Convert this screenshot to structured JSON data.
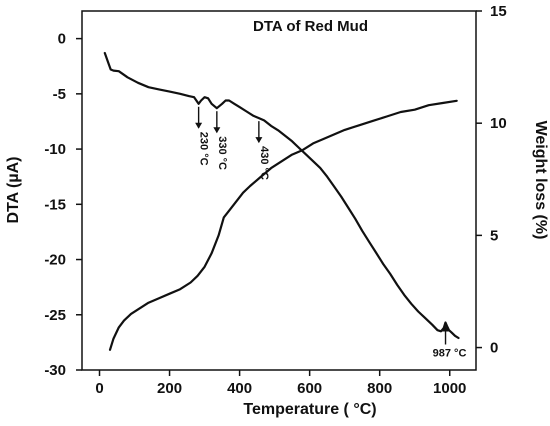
{
  "chart_data": {
    "type": "line",
    "title": "DTA of Red Mud",
    "xlabel": "Temperature ( °C)",
    "ylabel_left": "DTA (µA)",
    "ylabel_right": "Weight loss (%)",
    "xlim": [
      -50,
      1075
    ],
    "ylim_left": [
      -30,
      2.5
    ],
    "ylim_right": [
      -1,
      15
    ],
    "x_ticks": [
      "0",
      "200",
      "400",
      "600",
      "800",
      "1000"
    ],
    "y_left_ticks": [
      "0",
      "-5",
      "-10",
      "-15",
      "-20",
      "-25",
      "-30"
    ],
    "y_right_ticks": [
      "15",
      "10",
      "5",
      "0"
    ],
    "grid": false,
    "series": [
      {
        "axis": "left",
        "x": [
          15,
          25,
          32,
          40,
          55,
          80,
          110,
          140,
          170,
          200,
          230,
          255,
          270,
          283,
          290,
          300,
          310,
          320,
          335,
          350,
          360,
          370,
          385,
          400,
          420,
          440,
          455,
          470,
          490,
          510,
          530,
          550,
          570,
          590,
          610,
          630,
          650,
          670,
          690,
          710,
          730,
          750,
          770,
          790,
          810,
          830,
          850,
          870,
          890,
          910,
          930,
          950,
          965,
          975,
          983,
          988,
          992,
          998,
          1005,
          1015,
          1025
        ],
        "values": [
          -1.3,
          -2.2,
          -2.8,
          -2.9,
          -2.95,
          -3.5,
          -4.0,
          -4.4,
          -4.6,
          -4.8,
          -5.0,
          -5.2,
          -5.3,
          -5.9,
          -5.6,
          -5.3,
          -5.4,
          -5.9,
          -6.3,
          -5.9,
          -5.6,
          -5.6,
          -5.9,
          -6.2,
          -6.6,
          -7.0,
          -7.2,
          -7.4,
          -7.9,
          -8.3,
          -8.8,
          -9.3,
          -9.9,
          -10.5,
          -11.1,
          -11.7,
          -12.5,
          -13.4,
          -14.3,
          -15.3,
          -16.3,
          -17.4,
          -18.4,
          -19.4,
          -20.4,
          -21.3,
          -22.3,
          -23.2,
          -24.0,
          -24.7,
          -25.3,
          -25.9,
          -26.4,
          -26.5,
          -26.2,
          -25.7,
          -26.0,
          -26.4,
          -26.6,
          -26.9,
          -27.1
        ]
      },
      {
        "axis": "right",
        "x": [
          30,
          40,
          55,
          70,
          90,
          110,
          140,
          170,
          200,
          230,
          260,
          280,
          300,
          320,
          340,
          355,
          370,
          390,
          410,
          430,
          460,
          490,
          520,
          550,
          580,
          610,
          640,
          670,
          700,
          740,
          780,
          820,
          860,
          900,
          940,
          980,
          1020
        ],
        "values": [
          -0.1,
          0.4,
          0.9,
          1.2,
          1.5,
          1.7,
          2.0,
          2.2,
          2.4,
          2.6,
          2.9,
          3.2,
          3.6,
          4.2,
          5.0,
          5.8,
          6.1,
          6.5,
          6.9,
          7.2,
          7.6,
          8.0,
          8.3,
          8.6,
          8.8,
          9.1,
          9.3,
          9.5,
          9.7,
          9.9,
          10.1,
          10.3,
          10.5,
          10.6,
          10.8,
          10.9,
          11.0
        ]
      }
    ],
    "annotations": [
      {
        "label": "230 °C",
        "x": 283,
        "axis": "left",
        "value": -5.9
      },
      {
        "label": "330 °C",
        "x": 335,
        "axis": "left",
        "value": -6.3
      },
      {
        "label": "430 °C",
        "x": 455,
        "axis": "left",
        "value": -7.2
      },
      {
        "label": "987 °C",
        "x": 988,
        "axis": "left",
        "value": -25.7
      }
    ]
  }
}
